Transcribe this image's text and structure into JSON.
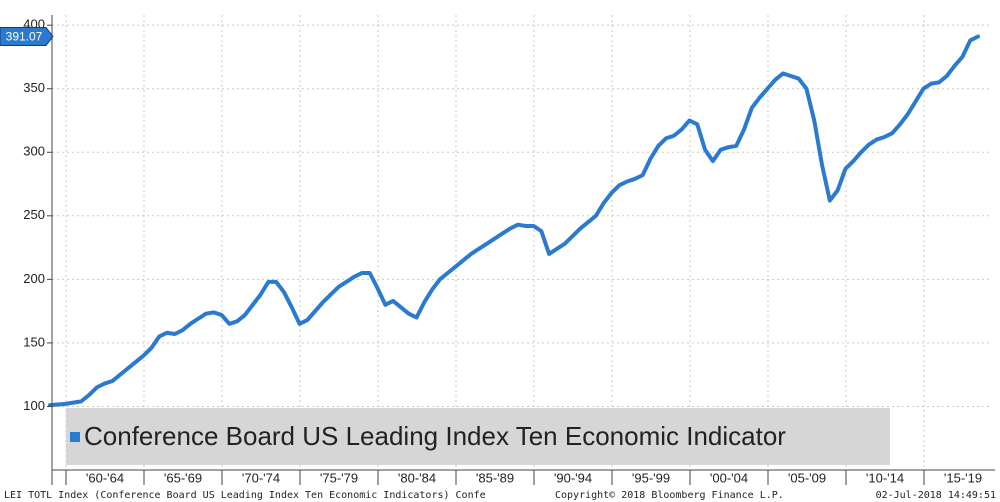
{
  "chart_data": {
    "type": "line",
    "x_axis_labels": [
      "'60-'64",
      "'65-'69",
      "'70-'74",
      "'75-'79",
      "'80-'84",
      "'85-'89",
      "'90-'94",
      "'95-'99",
      "'00-'04",
      "'05-'09",
      "'10-'14",
      "'15-'19"
    ],
    "series": [
      {
        "name": "Conference Board US Leading Index Ten Economic Indicator",
        "color": "#2a7ad0",
        "values": [
          101,
          101.5,
          102,
          103,
          104,
          109,
          115,
          118,
          120,
          125,
          130,
          135,
          140,
          146,
          155,
          158,
          157,
          160,
          165,
          169,
          173,
          174,
          172,
          165,
          167,
          172,
          180,
          188,
          198,
          198,
          190,
          178,
          165,
          168,
          175,
          182,
          188,
          194,
          198,
          202,
          205,
          205,
          193,
          180,
          183,
          178,
          173,
          170,
          182,
          192,
          200,
          205,
          210,
          215,
          220,
          224,
          228,
          232,
          236,
          240,
          243,
          242,
          242,
          238,
          220,
          224,
          228,
          234,
          240,
          245,
          250,
          260,
          268,
          274,
          277,
          279,
          282,
          295,
          305,
          311,
          313,
          318,
          325,
          322,
          302,
          293,
          302,
          304,
          305,
          318,
          335,
          343,
          350,
          357,
          362,
          360,
          358,
          350,
          325,
          290,
          262,
          270,
          287,
          293,
          300,
          306,
          310,
          312,
          315,
          322,
          330,
          340,
          350,
          354,
          355,
          360,
          368,
          375,
          388,
          391.07
        ]
      }
    ],
    "ylim": [
      50,
      408
    ],
    "yticks": [
      100,
      150,
      200,
      250,
      300,
      350,
      400
    ],
    "grid": true,
    "footer": {
      "left": "LEI TOTL Index (Conference Board US Leading Index Ten Economic Indicators) Confe",
      "center": "Copyright© 2018 Bloomberg Finance L.P.",
      "right": "02-Jul-2018 14:49:51"
    }
  }
}
